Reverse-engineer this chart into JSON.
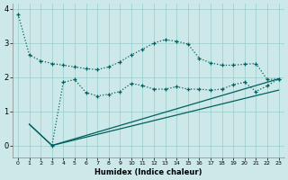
{
  "xlabel": "Humidex (Indice chaleur)",
  "background_color": "#cce8e8",
  "line_color": "#006060",
  "xlim": [
    -0.5,
    23.5
  ],
  "ylim": [
    -0.35,
    4.15
  ],
  "yticks": [
    0,
    1,
    2,
    3,
    4
  ],
  "xticks": [
    0,
    1,
    2,
    3,
    4,
    5,
    6,
    7,
    8,
    9,
    10,
    11,
    12,
    13,
    14,
    15,
    16,
    17,
    18,
    19,
    20,
    21,
    22,
    23
  ],
  "line1_x": [
    0,
    1,
    2,
    3,
    4,
    5,
    6,
    7,
    8,
    9,
    10,
    11,
    12,
    13,
    14,
    15,
    16,
    17,
    18,
    19,
    20,
    21,
    22,
    23
  ],
  "line1_y": [
    3.85,
    2.65,
    2.48,
    2.4,
    2.35,
    2.3,
    2.25,
    2.22,
    2.3,
    2.45,
    2.65,
    2.82,
    3.0,
    3.1,
    3.05,
    2.97,
    2.55,
    2.42,
    2.35,
    2.35,
    2.38,
    2.4,
    1.93,
    1.95
  ],
  "line2_x": [
    3,
    4,
    5,
    6,
    7,
    8,
    9,
    10,
    11,
    12,
    13,
    14,
    15,
    16,
    17,
    18,
    19,
    20,
    21,
    22,
    23
  ],
  "line2_y": [
    0.0,
    1.85,
    1.93,
    1.55,
    1.45,
    1.5,
    1.58,
    1.82,
    1.75,
    1.65,
    1.65,
    1.72,
    1.65,
    1.65,
    1.62,
    1.65,
    1.78,
    1.85,
    1.58,
    1.75,
    1.95
  ],
  "line3_x": [
    1,
    3,
    23
  ],
  "line3_y": [
    0.62,
    0.0,
    1.95
  ],
  "line4_x": [
    1,
    3,
    23
  ],
  "line4_y": [
    0.62,
    0.0,
    1.62
  ]
}
